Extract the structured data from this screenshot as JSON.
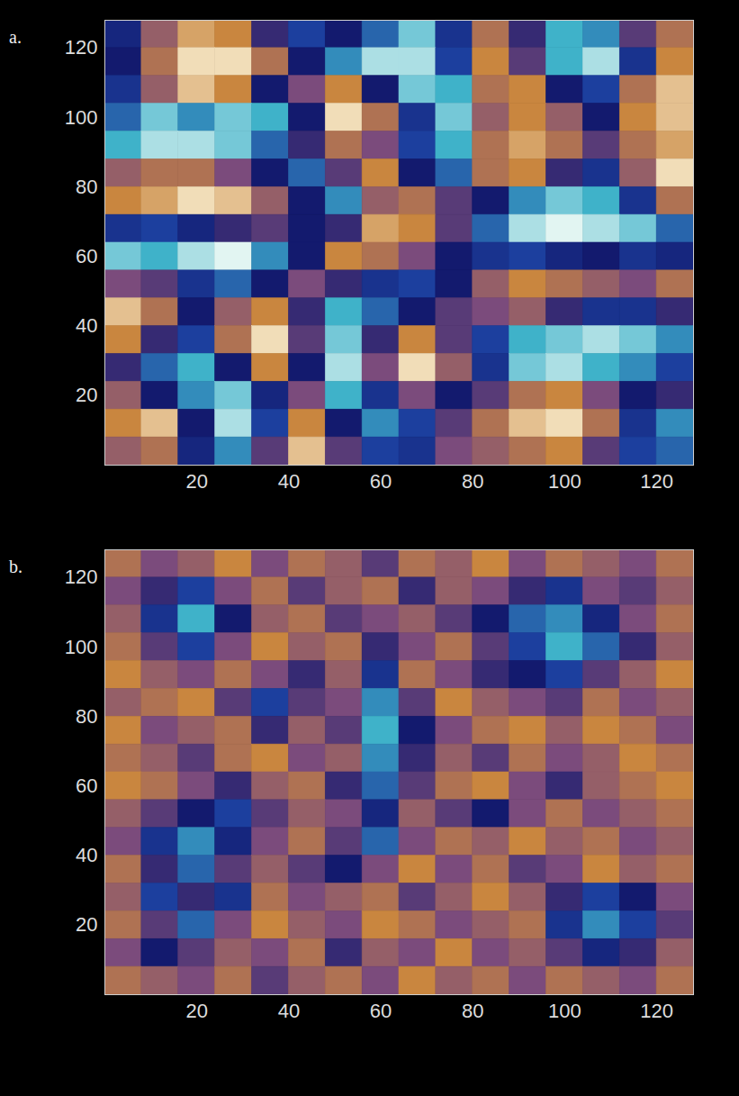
{
  "chart_data": [
    {
      "type": "heatmap",
      "panel": "a.",
      "x": [
        4,
        12,
        20,
        28,
        36,
        44,
        52,
        60,
        68,
        76,
        84,
        92,
        100,
        108,
        116,
        124
      ],
      "y": [
        124,
        116,
        108,
        100,
        92,
        84,
        76,
        68,
        60,
        52,
        44,
        36,
        28,
        20,
        12,
        4
      ],
      "cells": [
        [
          -0.1,
          0.4,
          0.7,
          0.6,
          0.1,
          -0.3,
          0.0,
          -0.4,
          -0.7,
          -0.2,
          0.5,
          0.1,
          -0.6,
          -0.5,
          0.2,
          0.5
        ],
        [
          0.0,
          0.5,
          0.9,
          0.9,
          0.5,
          0.0,
          -0.5,
          -0.8,
          -0.8,
          -0.3,
          0.6,
          0.2,
          -0.6,
          -0.8,
          -0.2,
          0.6
        ],
        [
          -0.2,
          0.4,
          0.8,
          0.6,
          0.0,
          0.3,
          0.6,
          0.0,
          -0.7,
          -0.6,
          0.5,
          0.6,
          0.0,
          -0.3,
          0.5,
          0.8
        ],
        [
          -0.4,
          -0.7,
          -0.5,
          -0.7,
          -0.6,
          0.0,
          0.9,
          0.5,
          -0.2,
          -0.7,
          0.4,
          0.6,
          0.4,
          0.0,
          0.6,
          0.8
        ],
        [
          -0.6,
          -0.8,
          -0.8,
          -0.7,
          -0.4,
          0.1,
          0.5,
          0.3,
          -0.3,
          -0.6,
          0.5,
          0.7,
          0.5,
          0.2,
          0.5,
          0.7
        ],
        [
          0.4,
          0.5,
          0.5,
          0.3,
          0.0,
          -0.4,
          0.2,
          0.6,
          0.0,
          -0.4,
          0.5,
          0.6,
          0.1,
          -0.2,
          0.4,
          0.9
        ],
        [
          0.6,
          0.7,
          0.9,
          0.8,
          0.4,
          0.0,
          -0.5,
          0.4,
          0.5,
          0.2,
          0.0,
          -0.5,
          -0.7,
          -0.6,
          -0.2,
          0.5
        ],
        [
          -0.2,
          -0.3,
          -0.1,
          0.1,
          0.2,
          0.0,
          0.1,
          0.7,
          0.6,
          0.2,
          -0.4,
          -0.8,
          -0.9,
          -0.8,
          -0.7,
          -0.4
        ],
        [
          -0.7,
          -0.6,
          -0.8,
          -0.9,
          -0.5,
          0.0,
          0.6,
          0.5,
          0.3,
          0.0,
          -0.2,
          -0.3,
          -0.1,
          0.0,
          -0.2,
          -0.1
        ],
        [
          0.3,
          0.2,
          -0.2,
          -0.4,
          0.0,
          0.3,
          0.1,
          -0.2,
          -0.3,
          0.0,
          0.4,
          0.6,
          0.5,
          0.4,
          0.3,
          0.5
        ],
        [
          0.8,
          0.5,
          0.0,
          0.4,
          0.6,
          0.1,
          -0.6,
          -0.4,
          0.0,
          0.2,
          0.3,
          0.4,
          0.1,
          -0.2,
          -0.2,
          0.1
        ],
        [
          0.6,
          0.1,
          -0.3,
          0.5,
          0.9,
          0.2,
          -0.7,
          0.1,
          0.6,
          0.2,
          -0.3,
          -0.6,
          -0.7,
          -0.8,
          -0.7,
          -0.5
        ],
        [
          0.1,
          -0.4,
          -0.6,
          0.0,
          0.6,
          0.0,
          -0.8,
          0.3,
          0.9,
          0.4,
          -0.2,
          -0.7,
          -0.8,
          -0.6,
          -0.5,
          -0.3
        ],
        [
          0.4,
          0.0,
          -0.5,
          -0.7,
          -0.1,
          0.3,
          -0.6,
          -0.2,
          0.3,
          0.0,
          0.2,
          0.5,
          0.6,
          0.3,
          0.0,
          0.1
        ],
        [
          0.6,
          0.8,
          0.0,
          -0.8,
          -0.3,
          0.6,
          0.0,
          -0.5,
          -0.3,
          0.2,
          0.5,
          0.8,
          0.9,
          0.5,
          -0.2,
          -0.5
        ],
        [
          0.4,
          0.5,
          -0.1,
          -0.5,
          0.2,
          0.8,
          0.2,
          -0.3,
          -0.2,
          0.3,
          0.4,
          0.5,
          0.6,
          0.2,
          -0.3,
          -0.4
        ]
      ],
      "xlim": [
        0,
        128
      ],
      "ylim": [
        0,
        128
      ],
      "xticks": [
        20,
        40,
        60,
        80,
        100,
        120
      ],
      "yticks": [
        20,
        40,
        60,
        80,
        100,
        120
      ]
    },
    {
      "type": "heatmap",
      "panel": "b.",
      "x": [
        4,
        12,
        20,
        28,
        36,
        44,
        52,
        60,
        68,
        76,
        84,
        92,
        100,
        108,
        116,
        124
      ],
      "y": [
        124,
        116,
        108,
        100,
        92,
        84,
        76,
        68,
        60,
        52,
        44,
        36,
        28,
        20,
        12,
        4
      ],
      "cells": [
        [
          0.5,
          0.3,
          0.4,
          0.6,
          0.3,
          0.5,
          0.4,
          0.2,
          0.5,
          0.4,
          0.6,
          0.3,
          0.5,
          0.4,
          0.3,
          0.5
        ],
        [
          0.3,
          0.1,
          -0.3,
          0.3,
          0.5,
          0.2,
          0.4,
          0.5,
          0.1,
          0.4,
          0.3,
          0.1,
          -0.2,
          0.3,
          0.2,
          0.4
        ],
        [
          0.4,
          -0.2,
          -0.6,
          0.0,
          0.4,
          0.5,
          0.2,
          0.3,
          0.4,
          0.2,
          0.0,
          -0.4,
          -0.5,
          -0.1,
          0.3,
          0.5
        ],
        [
          0.5,
          0.2,
          -0.3,
          0.3,
          0.6,
          0.4,
          0.5,
          0.1,
          0.3,
          0.5,
          0.2,
          -0.3,
          -0.6,
          -0.4,
          0.1,
          0.4
        ],
        [
          0.6,
          0.4,
          0.3,
          0.5,
          0.3,
          0.1,
          0.4,
          -0.2,
          0.5,
          0.3,
          0.1,
          0.0,
          -0.3,
          0.2,
          0.4,
          0.6
        ],
        [
          0.4,
          0.5,
          0.6,
          0.2,
          -0.3,
          0.2,
          0.3,
          -0.5,
          0.2,
          0.6,
          0.4,
          0.3,
          0.2,
          0.5,
          0.3,
          0.4
        ],
        [
          0.6,
          0.3,
          0.4,
          0.5,
          0.1,
          0.4,
          0.2,
          -0.6,
          0.0,
          0.3,
          0.5,
          0.6,
          0.4,
          0.6,
          0.5,
          0.3
        ],
        [
          0.5,
          0.4,
          0.2,
          0.5,
          0.6,
          0.3,
          0.4,
          -0.5,
          0.1,
          0.4,
          0.2,
          0.5,
          0.3,
          0.4,
          0.6,
          0.5
        ],
        [
          0.6,
          0.5,
          0.3,
          0.1,
          0.4,
          0.5,
          0.1,
          -0.4,
          0.2,
          0.5,
          0.6,
          0.3,
          0.1,
          0.4,
          0.5,
          0.6
        ],
        [
          0.4,
          0.2,
          0.0,
          -0.3,
          0.2,
          0.4,
          0.3,
          -0.1,
          0.4,
          0.2,
          0.0,
          0.3,
          0.5,
          0.3,
          0.4,
          0.5
        ],
        [
          0.3,
          -0.2,
          -0.5,
          -0.1,
          0.3,
          0.5,
          0.2,
          -0.4,
          0.3,
          0.5,
          0.4,
          0.6,
          0.4,
          0.5,
          0.3,
          0.4
        ],
        [
          0.5,
          0.1,
          -0.4,
          0.2,
          0.4,
          0.2,
          0.0,
          0.3,
          0.6,
          0.3,
          0.5,
          0.2,
          0.3,
          0.6,
          0.4,
          0.5
        ],
        [
          0.4,
          -0.3,
          0.1,
          -0.2,
          0.5,
          0.3,
          0.4,
          0.5,
          0.2,
          0.4,
          0.6,
          0.4,
          0.1,
          -0.3,
          0.0,
          0.3
        ],
        [
          0.5,
          0.2,
          -0.4,
          0.3,
          0.6,
          0.4,
          0.3,
          0.6,
          0.5,
          0.3,
          0.4,
          0.5,
          -0.2,
          -0.5,
          -0.3,
          0.2
        ],
        [
          0.3,
          0.0,
          0.2,
          0.4,
          0.3,
          0.5,
          0.1,
          0.4,
          0.3,
          0.6,
          0.3,
          0.4,
          0.2,
          -0.1,
          0.1,
          0.4
        ],
        [
          0.5,
          0.4,
          0.3,
          0.5,
          0.2,
          0.4,
          0.5,
          0.3,
          0.6,
          0.4,
          0.5,
          0.3,
          0.5,
          0.4,
          0.3,
          0.5
        ]
      ],
      "xlim": [
        0,
        128
      ],
      "ylim": [
        0,
        128
      ],
      "xticks": [
        20,
        40,
        60,
        80,
        100,
        120
      ],
      "yticks": [
        20,
        40,
        60,
        80,
        100,
        120
      ]
    }
  ]
}
